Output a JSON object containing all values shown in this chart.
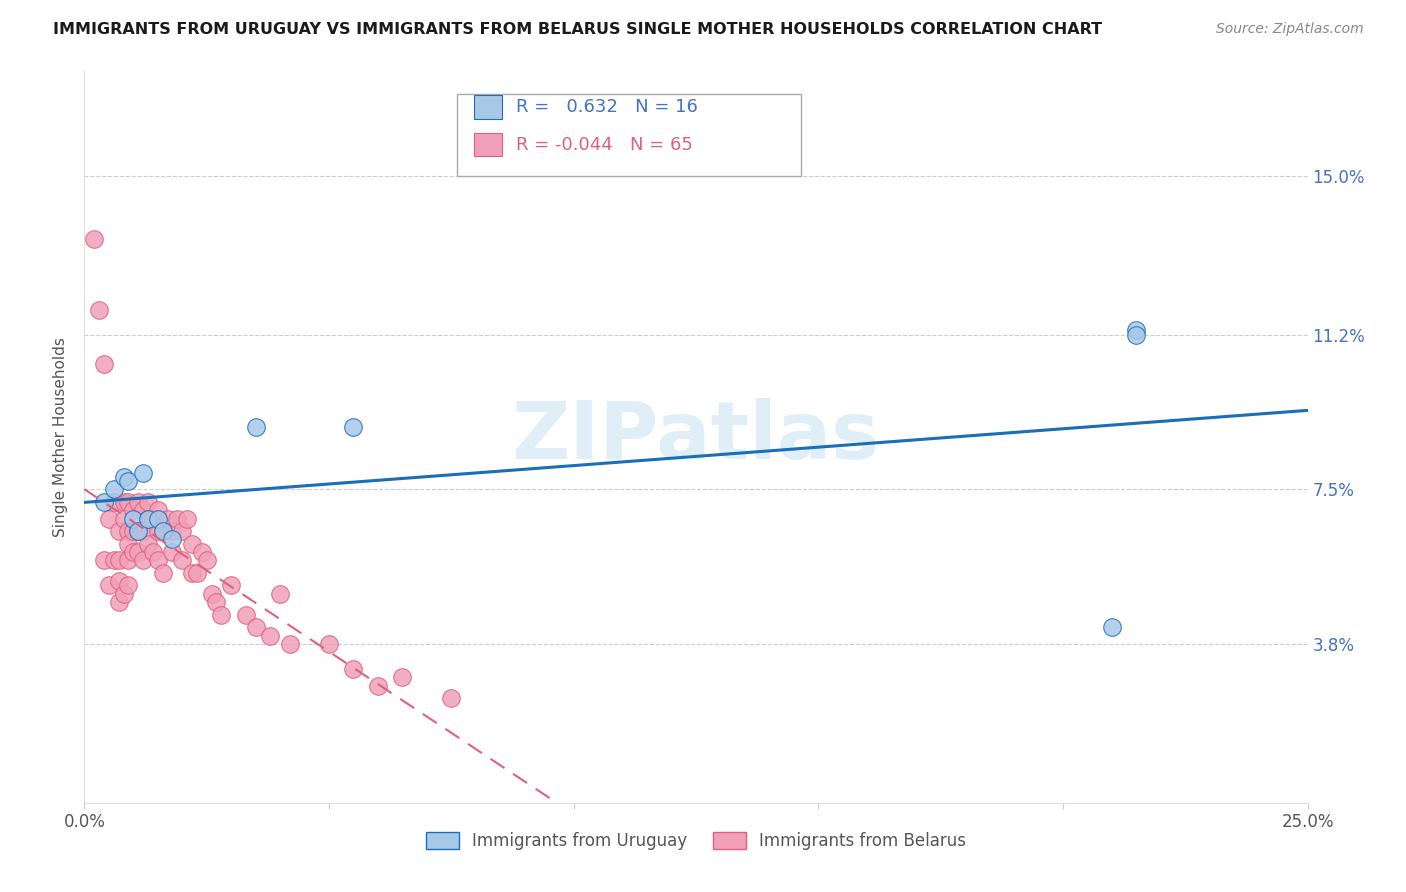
{
  "title": "IMMIGRANTS FROM URUGUAY VS IMMIGRANTS FROM BELARUS SINGLE MOTHER HOUSEHOLDS CORRELATION CHART",
  "source": "Source: ZipAtlas.com",
  "ylabel": "Single Mother Households",
  "xlim": [
    0.0,
    0.25
  ],
  "ylim": [
    0.0,
    0.175
  ],
  "yticks": [
    0.038,
    0.075,
    0.112,
    0.15
  ],
  "ytick_labels": [
    "3.8%",
    "7.5%",
    "11.2%",
    "15.0%"
  ],
  "xtick_vals": [
    0.0,
    0.05,
    0.1,
    0.15,
    0.2,
    0.25
  ],
  "xtick_labels": [
    "0.0%",
    "",
    "",
    "",
    "",
    "25.0%"
  ],
  "watermark": "ZIPatlas",
  "uruguay_color": "#a8c8e8",
  "belarus_color": "#f0a0b8",
  "uruguay_line_color": "#1a6fba",
  "belarus_line_color": "#e06080",
  "uruguay_R": 0.632,
  "uruguay_N": 16,
  "belarus_R": -0.044,
  "belarus_N": 65,
  "uruguay_points_x": [
    0.004,
    0.006,
    0.008,
    0.009,
    0.01,
    0.011,
    0.012,
    0.013,
    0.015,
    0.016,
    0.018,
    0.035,
    0.055,
    0.21,
    0.215,
    0.215
  ],
  "uruguay_points_y": [
    0.072,
    0.075,
    0.078,
    0.077,
    0.068,
    0.065,
    0.079,
    0.068,
    0.068,
    0.065,
    0.063,
    0.09,
    0.09,
    0.042,
    0.113,
    0.112
  ],
  "belarus_points_x": [
    0.002,
    0.003,
    0.004,
    0.004,
    0.005,
    0.005,
    0.006,
    0.006,
    0.007,
    0.007,
    0.007,
    0.007,
    0.008,
    0.008,
    0.008,
    0.009,
    0.009,
    0.009,
    0.009,
    0.009,
    0.01,
    0.01,
    0.01,
    0.011,
    0.011,
    0.011,
    0.012,
    0.012,
    0.012,
    0.013,
    0.013,
    0.013,
    0.014,
    0.014,
    0.015,
    0.015,
    0.015,
    0.016,
    0.016,
    0.017,
    0.018,
    0.018,
    0.019,
    0.02,
    0.02,
    0.021,
    0.022,
    0.022,
    0.023,
    0.024,
    0.025,
    0.026,
    0.027,
    0.028,
    0.03,
    0.033,
    0.035,
    0.038,
    0.04,
    0.042,
    0.05,
    0.055,
    0.06,
    0.065,
    0.075
  ],
  "belarus_points_y": [
    0.135,
    0.118,
    0.105,
    0.058,
    0.068,
    0.052,
    0.072,
    0.058,
    0.065,
    0.058,
    0.053,
    0.048,
    0.072,
    0.068,
    0.05,
    0.072,
    0.065,
    0.062,
    0.058,
    0.052,
    0.07,
    0.065,
    0.06,
    0.072,
    0.065,
    0.06,
    0.07,
    0.065,
    0.058,
    0.072,
    0.068,
    0.062,
    0.068,
    0.06,
    0.07,
    0.065,
    0.058,
    0.065,
    0.055,
    0.068,
    0.065,
    0.06,
    0.068,
    0.065,
    0.058,
    0.068,
    0.062,
    0.055,
    0.055,
    0.06,
    0.058,
    0.05,
    0.048,
    0.045,
    0.052,
    0.045,
    0.042,
    0.04,
    0.05,
    0.038,
    0.038,
    0.032,
    0.028,
    0.03,
    0.025
  ],
  "title_fontsize": 11.5,
  "source_fontsize": 10,
  "axis_label_fontsize": 11,
  "tick_fontsize": 12,
  "legend_fontsize": 12
}
